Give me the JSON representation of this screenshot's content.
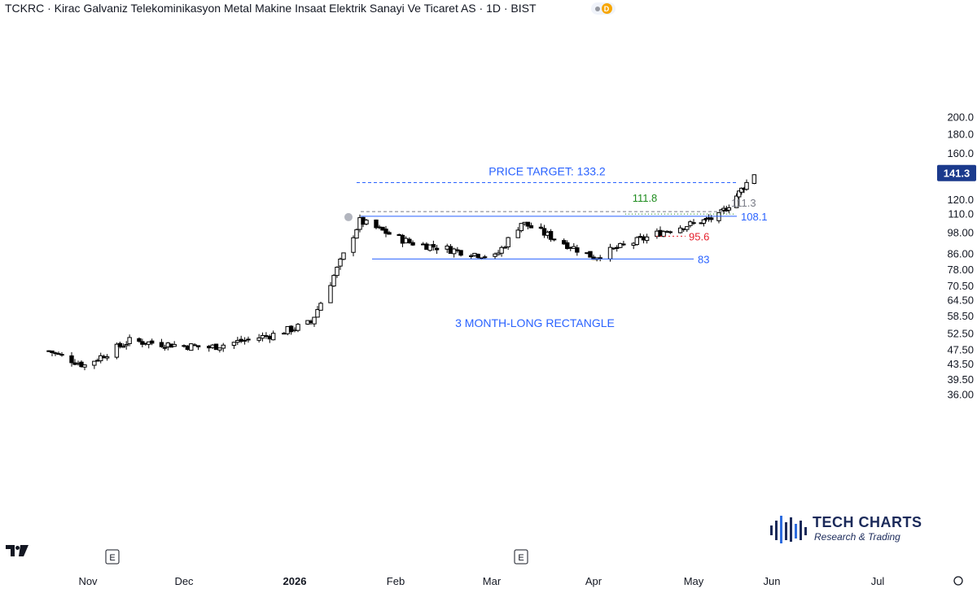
{
  "header": {
    "title": "TCKRC · Kirac Galvaniz Telekominikasyon Metal Makine Insaat Elektrik Sanayi Ve Ticaret AS · 1D · BIST",
    "timeframe_badge": "D"
  },
  "branding": {
    "logo_title": "TECH CHARTS",
    "logo_subtitle": "Research & Trading",
    "logo_icon": "bar-spark-icon",
    "platform_icon": "tradingview-icon"
  },
  "colors": {
    "candle_up": "#ffffff",
    "candle_down": "#000000",
    "candle_border": "#000000",
    "target_line": "#2962ff",
    "support_line": "#2962ff",
    "resistance_grey": "#787b86",
    "breakout_green": "#1e8c1e",
    "stop_red": "#e5202c",
    "last_price_bg": "#1b3a8c"
  },
  "chart_data": {
    "type": "candlestick",
    "title": "",
    "y_scale": "log",
    "ylim": [
      34.2,
      210
    ],
    "y_ticks": [
      "36.00",
      "39.50",
      "43.50",
      "47.50",
      "52.50",
      "58.50",
      "64.50",
      "70.50",
      "78.00",
      "86.00",
      "98.00",
      "110.0",
      "120.0",
      "141.3",
      "160.0",
      "180.0",
      "200.0"
    ],
    "x_ticks": [
      "Nov",
      "Dec",
      "2026",
      "Feb",
      "Mar",
      "Apr",
      "May",
      "Jun",
      "Jul"
    ],
    "last_price": "141.3",
    "event_markers": [
      "E",
      "E"
    ],
    "annotations": {
      "price_target_label": "PRICE TARGET: 133.2",
      "rectangle_label": "3 MONTH-LONG RECTANGLE",
      "breakout_high": "111.8",
      "prior_high": "111.3",
      "resistance": "108.1",
      "stop_level": "95.6",
      "support": "83"
    },
    "levels": {
      "price_target": 133.2,
      "prior_high": 111.3,
      "resistance": 108.1,
      "stop_level": 95.6,
      "support": 83
    },
    "key_closes": [
      {
        "date": "2025-10-20",
        "close": 47
      },
      {
        "date": "2025-10-31",
        "close": 43
      },
      {
        "date": "2025-11-14",
        "close": 50
      },
      {
        "date": "2025-12-08",
        "close": 48
      },
      {
        "date": "2025-12-26",
        "close": 52
      },
      {
        "date": "2026-01-06",
        "close": 56
      },
      {
        "date": "2026-01-14",
        "close": 78
      },
      {
        "date": "2026-01-21",
        "close": 105
      },
      {
        "date": "2026-02-05",
        "close": 92
      },
      {
        "date": "2026-03-02",
        "close": 84
      },
      {
        "date": "2026-03-10",
        "close": 104
      },
      {
        "date": "2026-04-01",
        "close": 84
      },
      {
        "date": "2026-04-24",
        "close": 100
      },
      {
        "date": "2026-05-11",
        "close": 108
      },
      {
        "date": "2026-05-19",
        "close": 125
      },
      {
        "date": "2026-05-25",
        "close": 141.3
      }
    ]
  }
}
